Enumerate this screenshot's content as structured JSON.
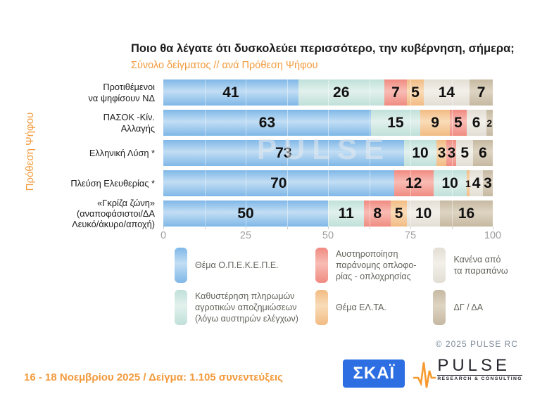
{
  "colors": {
    "accent": "#f29a3c",
    "tick_gray": "#9e9e9e",
    "text_dark": "#1b1b1b",
    "skai_blue": "#2d6fe3",
    "opekepe": {
      "base": "#7fb7e7",
      "light": "#c2def4"
    },
    "payments": {
      "base": "#bfe0d9",
      "light": "#e3f1ed"
    },
    "weapons": {
      "base": "#f08b81",
      "light": "#f8bcb5"
    },
    "elta": {
      "base": "#f2bb83",
      "light": "#f9dcb8"
    },
    "none": {
      "base": "#e2ded4",
      "light": "#f3f0ea"
    },
    "dgda": {
      "base": "#c6b9a2",
      "light": "#ded4c2"
    }
  },
  "chart_data": {
    "type": "bar",
    "stacked": true,
    "orientation": "horizontal",
    "title": "Ποιο θα λέγατε ότι δυσκολεύει περισσότερο, την κυβέρνηση, σήμερα;",
    "subtitle": "Σύνολο δείγματος // ανά Πρόθεση Ψήφου",
    "ylabel": "Πρόθεση Ψήφου",
    "xlim": [
      0,
      100
    ],
    "x_ticks": [
      "0",
      "25",
      "50",
      "75",
      "100"
    ],
    "rows": [
      {
        "label_lines": [
          "Προτιθέμενοι",
          "να ψηφίσουν ΝΔ"
        ],
        "segments": [
          {
            "key": "opekepe",
            "value": 41
          },
          {
            "key": "payments",
            "value": 26
          },
          {
            "key": "weapons",
            "value": 7
          },
          {
            "key": "elta",
            "value": 5
          },
          {
            "key": "none",
            "value": 14
          },
          {
            "key": "dgda",
            "value": 7
          }
        ]
      },
      {
        "label_lines": [
          "ΠΑΣΟΚ -Κίν.",
          "Αλλαγής"
        ],
        "segments": [
          {
            "key": "opekepe",
            "value": 63
          },
          {
            "key": "payments",
            "value": 15
          },
          {
            "key": "elta",
            "value": 9
          },
          {
            "key": "weapons",
            "value": 5
          },
          {
            "key": "none",
            "value": 6
          },
          {
            "key": "dgda",
            "value": 2
          }
        ]
      },
      {
        "label_lines": [
          "Ελληνική Λύση *"
        ],
        "segments": [
          {
            "key": "opekepe",
            "value": 73
          },
          {
            "key": "payments",
            "value": 10
          },
          {
            "key": "elta",
            "value": 3
          },
          {
            "key": "weapons",
            "value": 3
          },
          {
            "key": "none",
            "value": 5
          },
          {
            "key": "dgda",
            "value": 6
          }
        ]
      },
      {
        "label_lines": [
          "Πλεύση Ελευθερίας *"
        ],
        "segments": [
          {
            "key": "opekepe",
            "value": 70
          },
          {
            "key": "weapons",
            "value": 12
          },
          {
            "key": "payments",
            "value": 10
          },
          {
            "key": "elta",
            "value": 1
          },
          {
            "key": "none",
            "value": 4
          },
          {
            "key": "dgda",
            "value": 3
          }
        ]
      },
      {
        "label_lines": [
          "«Γκρίζα ζώνη»",
          "(αναποφάσιστοι/ΔΑ",
          "Λευκό/άκυρο/αποχή)"
        ],
        "segments": [
          {
            "key": "opekepe",
            "value": 50
          },
          {
            "key": "payments",
            "value": 11
          },
          {
            "key": "weapons",
            "value": 8
          },
          {
            "key": "elta",
            "value": 5
          },
          {
            "key": "none",
            "value": 10
          },
          {
            "key": "dgda",
            "value": 16
          }
        ]
      }
    ]
  },
  "legend": {
    "items": [
      {
        "key": "opekepe",
        "lines": [
          "Θέμα Ο.Π.Ε.Κ.Ε.Π.Ε."
        ]
      },
      {
        "key": "payments",
        "lines": [
          "Καθυστέρηση πληρωμών",
          "αγροτικών αποζημιώσεων",
          "(λόγω αυστηρών ελέγχων)"
        ]
      },
      {
        "key": "weapons",
        "lines": [
          "Αυστηροποίηση",
          "παράνομης οπλοφο-",
          "ρίας - οπλοχρησίας"
        ]
      },
      {
        "key": "elta",
        "lines": [
          "Θέμα ΕΛ.ΤΑ."
        ]
      },
      {
        "key": "none",
        "lines": [
          "Κανένα από",
          "τα παραπάνω"
        ]
      },
      {
        "key": "dgda",
        "lines": [
          "ΔΓ / ΔΑ"
        ]
      }
    ]
  },
  "watermark": "PULSE",
  "copyright": "© 2025 PULSE RC",
  "footer": {
    "note": "16 - 18 Νοεμβρίου 2025 / Δείγμα: 1.105 συνεντεύξεις",
    "skai_logo": "ΣΚΑΪ",
    "pulse_logo": "PULSE",
    "pulse_sub": "RESEARCH & CONSULTING"
  }
}
